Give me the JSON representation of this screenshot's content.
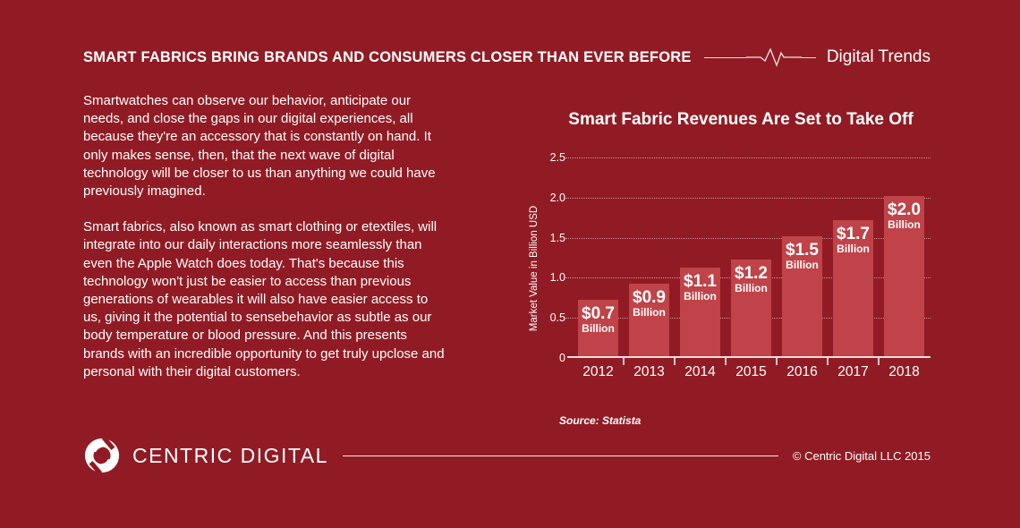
{
  "colors": {
    "background": "#911B24",
    "bar": "#BF4348",
    "text": "#FFFFFF"
  },
  "header": {
    "title": "SMART FABRICS BRING BRANDS AND CONSUMERS CLOSER THAN EVER BEFORE",
    "brand_label": "Digital Trends"
  },
  "article": {
    "paragraph_1": "Smartwatches can observe our behavior, anticipate our needs, and close the gaps in our digital experiences, all because they're an accessory that is constantly on hand. It only makes sense, then, that the next wave of digital technology will be closer to us than anything we could have previously imagined.",
    "paragraph_2": "Smart fabrics, also known as smart clothing or etextiles, will integrate into our daily interactions more seamlessly than even the Apple Watch does today. That's because this technology won't just be easier to access than previous generations of wearables  it will also have easier access to us, giving it the potential to sensebehavior as subtle as our body temperature or blood pressure. And this presents brands with an incredible opportunity to get truly upclose and personal with their digital customers."
  },
  "chart_data": {
    "type": "bar",
    "title": "Smart Fabric Revenues Are Set to Take Off",
    "categories": [
      "2012",
      "2013",
      "2014",
      "2015",
      "2016",
      "2017",
      "2018"
    ],
    "values": [
      0.7,
      0.9,
      1.1,
      1.2,
      1.5,
      1.7,
      2.0
    ],
    "value_labels": [
      "$0.7",
      "$0.9",
      "$1.1",
      "$1.2",
      "$1.5",
      "$1.7",
      "$2.0"
    ],
    "unit_label": "Billion",
    "ylabel": "Market Value in Billion USD",
    "xlabel": "",
    "yticks": [
      0,
      0.5,
      1.0,
      1.5,
      2.0,
      2.5
    ],
    "ytick_labels": [
      "0",
      "0.5",
      "1.0",
      "1.5",
      "2.0",
      "2.5"
    ],
    "ylim": [
      0,
      2.5
    ],
    "grid": true,
    "legend": false,
    "bar_color": "#BF4348",
    "source": "Source: Statista"
  },
  "footer": {
    "logo_text": "CENTRIC DIGITAL",
    "copyright": "© Centric Digital LLC 2015"
  }
}
